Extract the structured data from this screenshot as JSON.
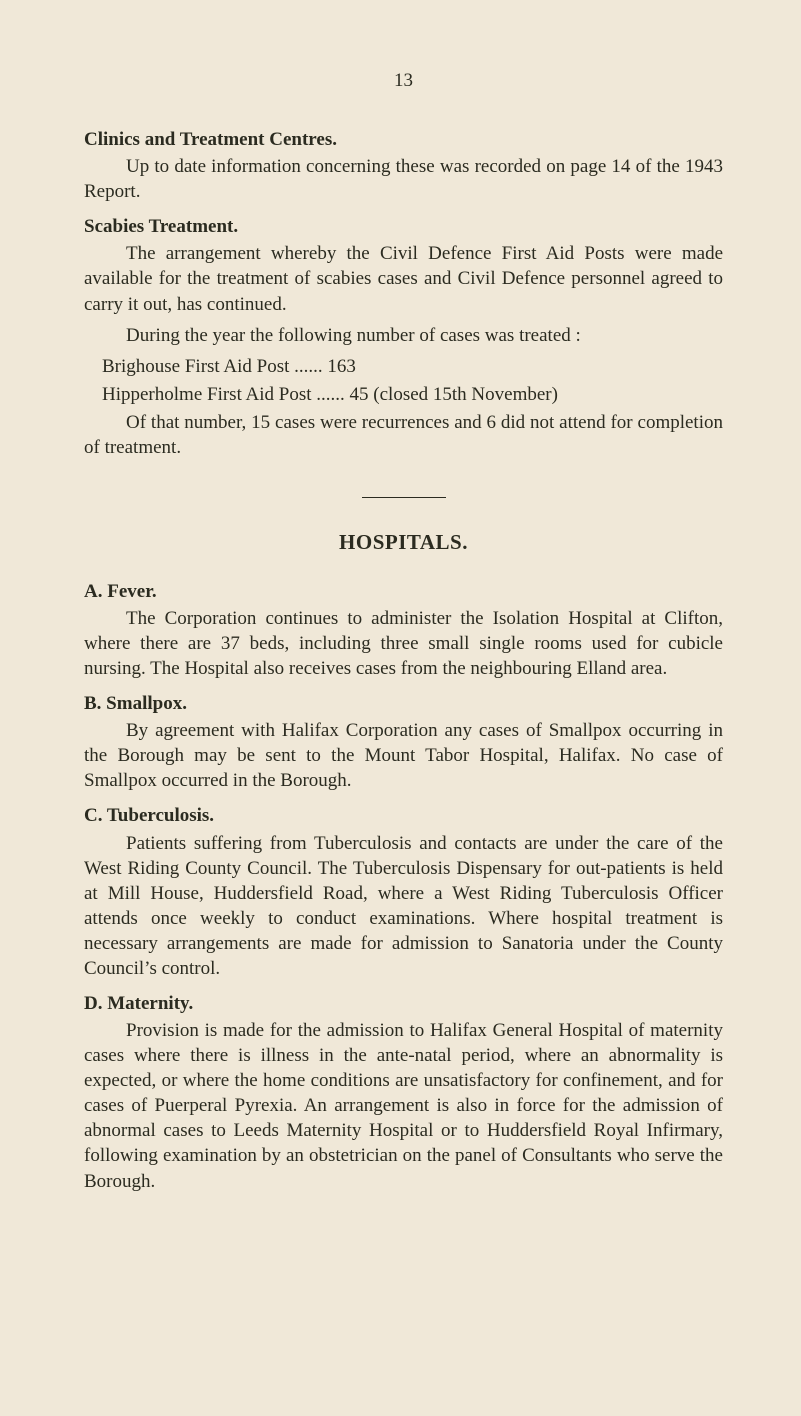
{
  "page_number": "13",
  "clinics": {
    "heading": "Clinics and Treatment Centres.",
    "para1": "Up to date information concerning these was recorded on page 14 of the 1943 Report."
  },
  "scabies": {
    "heading": "Scabies Treatment.",
    "para1": "The arrangement whereby the Civil Defence First Aid Posts were made available for the treatment of scabies cases and Civil Defence personnel agreed to carry it out, has continued.",
    "para2": "During the year the following number of cases was treated :",
    "line1": "Brighouse First Aid Post   ...... 163",
    "line2": "Hipperholme First Aid Post ......   45  (closed 15th November)",
    "para3": "Of that number, 15 cases were recurrences and 6 did not attend for completion of treatment."
  },
  "hospitals_title": "HOSPITALS.",
  "fever": {
    "label": "A. Fever.",
    "para1": "The Corporation continues to administer the Isolation Hospital at Clifton, where there are 37 beds, including three small single rooms used for cubicle nursing. The Hospital also receives cases from the neighbouring Elland area."
  },
  "smallpox": {
    "label": "B. Smallpox.",
    "para1": "By agreement with Halifax Corporation any cases of Small­pox occurring in the Borough may be sent to the Mount Tabor Hospital, Halifax. No case of Smallpox occurred in the Borough."
  },
  "tuberculosis": {
    "label": "C. Tuberculosis.",
    "para1": "Patients suffering from Tuberculosis and contacts are under the care of the West Riding County Council. The Tuberculosis Dispensary for out-patients is held at Mill House, Huddersfield Road, where a West Riding Tuberculosis Officer attends once weekly to conduct examinations. Where hospital treatment is necessary arrangements are made for admission to Sanatoria under the County Council’s control."
  },
  "maternity": {
    "label": "D. Maternity.",
    "para1": "Provision is made for the admission to Halifax General Hospital of maternity cases where there is illness in the ante-natal period, where an abnormality is expected, or where the home conditions are unsatisfactory for confinement, and for cases of Puerperal Pyrexia. An arrangement is also in force for the admis­sion of abnormal cases to Leeds Maternity Hospital or to Hudders­field Royal Infirmary, following examination by an obstetrician on the panel of Consultants who serve the Borough."
  }
}
